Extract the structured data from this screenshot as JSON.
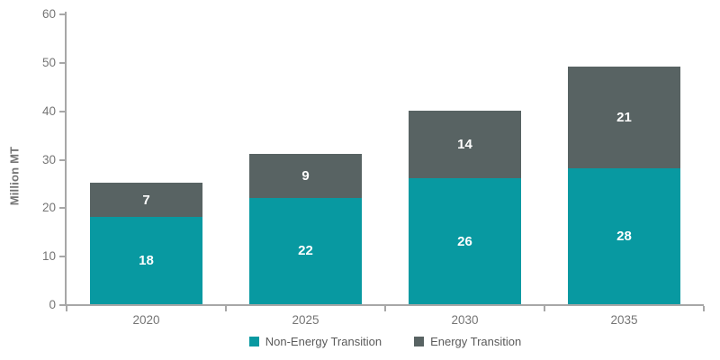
{
  "chart_data": {
    "type": "bar",
    "stacked": true,
    "title": "",
    "xlabel": "",
    "ylabel": "Million MT",
    "ylim": [
      0,
      60
    ],
    "ytick_step": 10,
    "grid": false,
    "legend_position": "bottom",
    "categories": [
      "2020",
      "2025",
      "2030",
      "2035"
    ],
    "series": [
      {
        "name": "Non-Energy Transition",
        "color": "#0899A1",
        "values": [
          18,
          22,
          26,
          28
        ]
      },
      {
        "name": "Energy Transition",
        "color": "#586363",
        "values": [
          7,
          9,
          14,
          21
        ]
      }
    ],
    "totals": [
      25,
      31,
      40,
      49
    ],
    "bar_label_color": "#FFFFFF"
  },
  "style": {
    "axis_line_color": "#A7A7A7",
    "tick_label_color": "#757575",
    "legend_text_color": "#5A5A5A",
    "background": "#FFFFFF"
  }
}
